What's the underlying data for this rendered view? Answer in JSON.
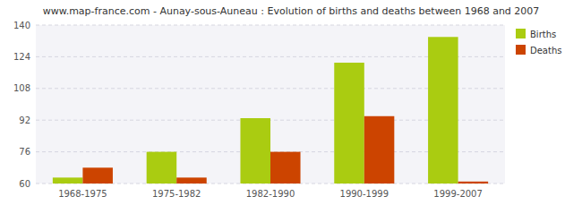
{
  "chart_data": {
    "type": "bar",
    "title": "www.map-france.com - Aunay-sous-Auneau : Evolution of births and deaths between 1968 and 2007",
    "categories": [
      "1968-1975",
      "1975-1982",
      "1982-1990",
      "1990-1999",
      "1999-2007"
    ],
    "series": [
      {
        "name": "Births",
        "color": "#aacc11",
        "values": [
          63,
          76,
          93,
          121,
          134
        ]
      },
      {
        "name": "Deaths",
        "color": "#cc4400",
        "values": [
          68,
          63,
          76,
          94,
          61
        ]
      }
    ],
    "ylim": [
      60,
      140
    ],
    "yticks": [
      60,
      76,
      92,
      108,
      124,
      140
    ],
    "grid": true,
    "legend": "upper right"
  }
}
